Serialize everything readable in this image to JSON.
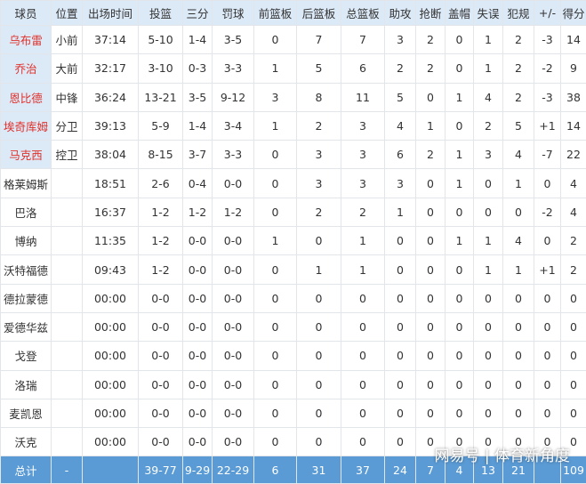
{
  "table": {
    "header": [
      "球员",
      "位置",
      "出场时间",
      "投篮",
      "三分",
      "罚球",
      "前篮板",
      "后篮板",
      "总篮板",
      "助攻",
      "抢断",
      "盖帽",
      "失误",
      "犯规",
      "+/-",
      "得分"
    ],
    "rows": [
      [
        "乌布雷",
        "小前",
        "37:14",
        "5-10",
        "1-4",
        "3-5",
        "0",
        "7",
        "7",
        "3",
        "2",
        "0",
        "1",
        "2",
        "-3",
        "14"
      ],
      [
        "乔治",
        "大前",
        "32:17",
        "3-10",
        "0-3",
        "3-3",
        "1",
        "5",
        "6",
        "2",
        "2",
        "0",
        "1",
        "2",
        "-2",
        "9"
      ],
      [
        "恩比德",
        "中锋",
        "36:24",
        "13-21",
        "3-5",
        "9-12",
        "3",
        "8",
        "11",
        "5",
        "0",
        "1",
        "4",
        "2",
        "-3",
        "38"
      ],
      [
        "埃奇库姆",
        "分卫",
        "39:13",
        "5-9",
        "1-4",
        "3-4",
        "1",
        "2",
        "3",
        "4",
        "1",
        "0",
        "2",
        "5",
        "+1",
        "14"
      ],
      [
        "马克西",
        "控卫",
        "38:04",
        "8-15",
        "3-7",
        "3-3",
        "0",
        "3",
        "3",
        "6",
        "2",
        "1",
        "3",
        "4",
        "-7",
        "22"
      ],
      [
        "格莱姆斯",
        null,
        "18:51",
        "2-6",
        "0-4",
        "0-0",
        "0",
        "3",
        "3",
        "3",
        "0",
        "1",
        "0",
        "1",
        "0",
        "4"
      ],
      [
        "巴洛",
        null,
        "16:37",
        "1-2",
        "1-2",
        "1-2",
        "0",
        "2",
        "2",
        "1",
        "0",
        "0",
        "0",
        "0",
        "-2",
        "4"
      ],
      [
        "博纳",
        null,
        "11:35",
        "1-2",
        "0-0",
        "0-0",
        "1",
        "0",
        "1",
        "0",
        "0",
        "1",
        "1",
        "4",
        "0",
        "2"
      ],
      [
        "沃特福德",
        null,
        "09:43",
        "1-2",
        "0-0",
        "0-0",
        "0",
        "1",
        "1",
        "0",
        "0",
        "0",
        "1",
        "1",
        "+1",
        "2"
      ],
      [
        "德拉蒙德",
        null,
        "00:00",
        "0-0",
        "0-0",
        "0-0",
        "0",
        "0",
        "0",
        "0",
        "0",
        "0",
        "0",
        "0",
        "0",
        "0"
      ],
      [
        "爱德华兹",
        null,
        "00:00",
        "0-0",
        "0-0",
        "0-0",
        "0",
        "0",
        "0",
        "0",
        "0",
        "0",
        "0",
        "0",
        "0",
        "0"
      ],
      [
        "戈登",
        null,
        "00:00",
        "0-0",
        "0-0",
        "0-0",
        "0",
        "0",
        "0",
        "0",
        "0",
        "0",
        "0",
        "0",
        "0",
        "0"
      ],
      [
        "洛瑞",
        null,
        "00:00",
        "0-0",
        "0-0",
        "0-0",
        "0",
        "0",
        "0",
        "0",
        "0",
        "0",
        "0",
        "0",
        "0",
        "0"
      ],
      [
        "麦凯恩",
        null,
        "00:00",
        "0-0",
        "0-0",
        "0-0",
        "0",
        "0",
        "0",
        "0",
        "0",
        "0",
        "0",
        "0",
        "0",
        "0"
      ],
      [
        "沃克",
        null,
        "00:00",
        "0-0",
        "0-0",
        "0-0",
        "0",
        "0",
        "0",
        "0",
        "0",
        "0",
        "0",
        "0",
        "0",
        "0"
      ]
    ],
    "total": [
      "总计",
      "-",
      null,
      "39-77",
      "9-29",
      "22-29",
      "6",
      "31",
      "37",
      "24",
      "7",
      "4",
      "13",
      "21",
      null,
      "109"
    ],
    "starters": 5
  },
  "watermark": "网易号 | 体育新角度"
}
